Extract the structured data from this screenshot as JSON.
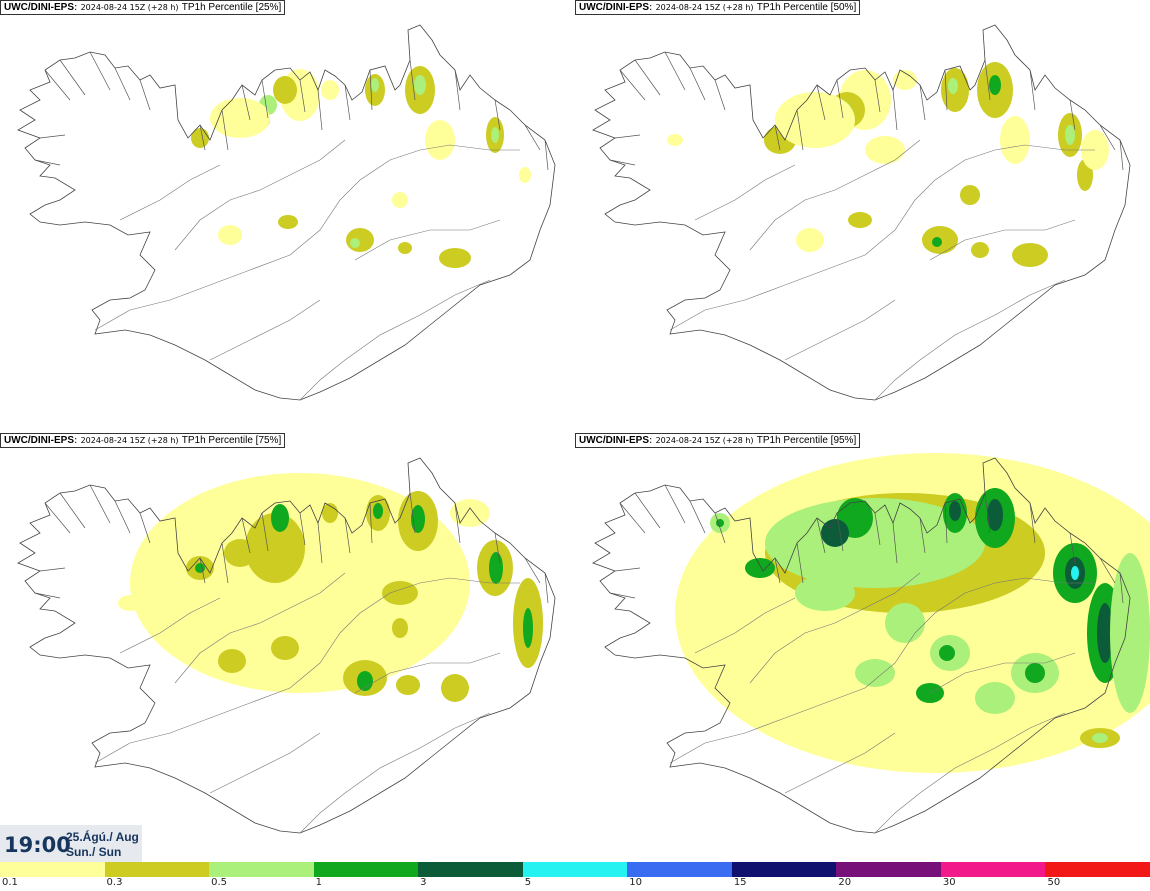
{
  "panels": [
    {
      "model": "UWC/DINI-EPS",
      "run": "2024-08-24 15Z (+28 h)",
      "param": "TP1h Percentile [25%]",
      "percentile": 25
    },
    {
      "model": "UWC/DINI-EPS",
      "run": "2024-08-24 15Z (+28 h)",
      "param": "TP1h Percentile [50%]",
      "percentile": 50
    },
    {
      "model": "UWC/DINI-EPS",
      "run": "2024-08-24 15Z (+28 h)",
      "param": "TP1h Percentile [75%]",
      "percentile": 75
    },
    {
      "model": "UWC/DINI-EPS",
      "run": "2024-08-24 15Z (+28 h)",
      "param": "TP1h Percentile [95%]",
      "percentile": 95
    }
  ],
  "valid_time": {
    "clock": "19:00",
    "date": "25.Ágú./ Aug",
    "day": "Sun./ Sun"
  },
  "legend": {
    "colors": [
      "#ffff99",
      "#cccc22",
      "#aaf07a",
      "#0fa81e",
      "#0c5c3a",
      "#26f2f2",
      "#3a6cf2",
      "#10106e",
      "#78107a",
      "#f21a8a",
      "#f21818"
    ],
    "ticks": [
      "0.1",
      "0.3",
      "0.5",
      "1",
      "3",
      "5",
      "10",
      "15",
      "20",
      "30",
      "50"
    ]
  }
}
